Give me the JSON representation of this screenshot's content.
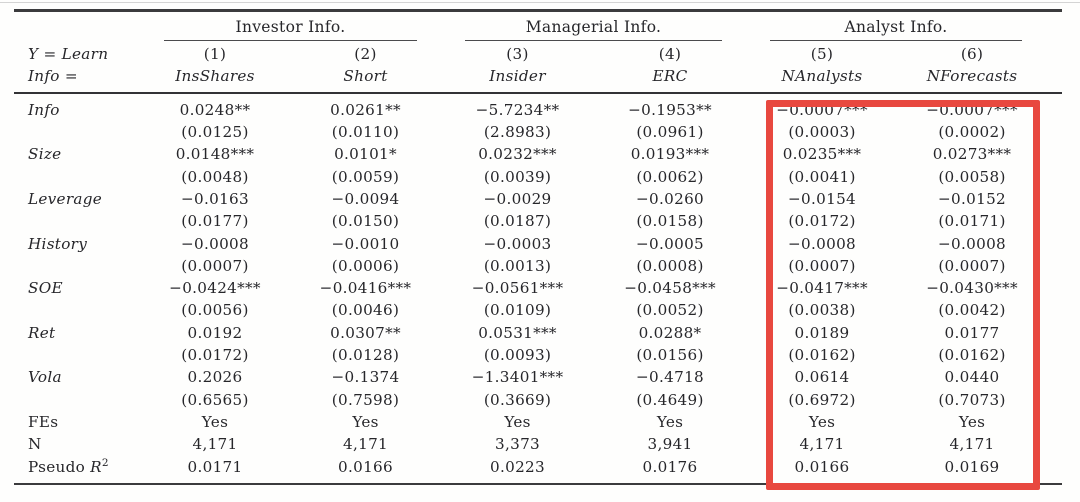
{
  "highlight": {
    "color": "#e8483f",
    "target": "analyst-info-columns"
  },
  "table": {
    "corner": {
      "line1": "Y = Learn",
      "line2": "Info ="
    },
    "groups": [
      {
        "label": "Investor Info."
      },
      {
        "label": "Managerial Info."
      },
      {
        "label": "Analyst Info."
      }
    ],
    "column_numbers": [
      "(1)",
      "(2)",
      "(3)",
      "(4)",
      "(5)",
      "(6)"
    ],
    "column_names": [
      "InsShares",
      "Short",
      "Insider",
      "ERC",
      "NAnalysts",
      "NForecasts"
    ],
    "coef_rows": [
      {
        "label": "Info",
        "coef": [
          "0.0248**",
          "0.0261**",
          "−5.7234**",
          "−0.1953**",
          "−0.0007***",
          "−0.0007***"
        ],
        "se": [
          "(0.0125)",
          "(0.0110)",
          "(2.8983)",
          "(0.0961)",
          "(0.0003)",
          "(0.0002)"
        ]
      },
      {
        "label": "Size",
        "coef": [
          "0.0148***",
          "0.0101*",
          "0.0232***",
          "0.0193***",
          "0.0235***",
          "0.0273***"
        ],
        "se": [
          "(0.0048)",
          "(0.0059)",
          "(0.0039)",
          "(0.0062)",
          "(0.0041)",
          "(0.0058)"
        ]
      },
      {
        "label": "Leverage",
        "coef": [
          "−0.0163",
          "−0.0094",
          "−0.0029",
          "−0.0260",
          "−0.0154",
          "−0.0152"
        ],
        "se": [
          "(0.0177)",
          "(0.0150)",
          "(0.0187)",
          "(0.0158)",
          "(0.0172)",
          "(0.0171)"
        ]
      },
      {
        "label": "History",
        "coef": [
          "−0.0008",
          "−0.0010",
          "−0.0003",
          "−0.0005",
          "−0.0008",
          "−0.0008"
        ],
        "se": [
          "(0.0007)",
          "(0.0006)",
          "(0.0013)",
          "(0.0008)",
          "(0.0007)",
          "(0.0007)"
        ]
      },
      {
        "label": "SOE",
        "coef": [
          "−0.0424***",
          "−0.0416***",
          "−0.0561***",
          "−0.0458***",
          "−0.0417***",
          "−0.0430***"
        ],
        "se": [
          "(0.0056)",
          "(0.0046)",
          "(0.0109)",
          "(0.0052)",
          "(0.0038)",
          "(0.0042)"
        ]
      },
      {
        "label": "Ret",
        "coef": [
          "0.0192",
          "0.0307**",
          "0.0531***",
          "0.0288*",
          "0.0189",
          "0.0177"
        ],
        "se": [
          "(0.0172)",
          "(0.0128)",
          "(0.0093)",
          "(0.0156)",
          "(0.0162)",
          "(0.0162)"
        ]
      },
      {
        "label": "Vola",
        "coef": [
          "0.2026",
          "−0.1374",
          "−1.3401***",
          "−0.4718",
          "0.0614",
          "0.0440"
        ],
        "se": [
          "(0.6565)",
          "(0.7598)",
          "(0.3669)",
          "(0.4649)",
          "(0.6972)",
          "(0.7073)"
        ]
      }
    ],
    "stat_rows": [
      {
        "label": "FEs",
        "values": [
          "Yes",
          "Yes",
          "Yes",
          "Yes",
          "Yes",
          "Yes"
        ]
      },
      {
        "label": "N",
        "values": [
          "4,171",
          "4,171",
          "3,373",
          "3,941",
          "4,171",
          "4,171"
        ]
      },
      {
        "label": "Pseudo R²",
        "values": [
          "0.0171",
          "0.0166",
          "0.0223",
          "0.0176",
          "0.0166",
          "0.0169"
        ]
      }
    ]
  }
}
